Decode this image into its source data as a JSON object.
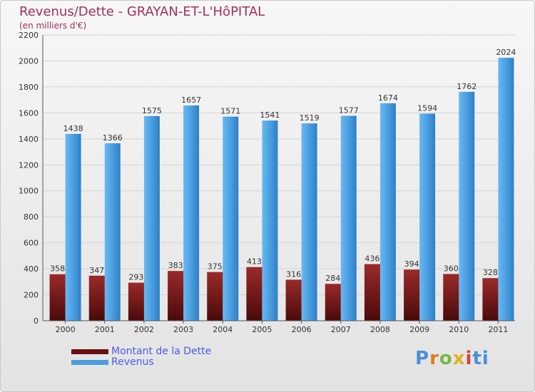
{
  "header": {
    "title": "Revenus/Dette - GRAYAN-ET-L'HôPITAL",
    "subtitle": "(en milliers d'€)"
  },
  "logo": {
    "text": "Proxiti",
    "letters": [
      "P",
      "r",
      "o",
      "x",
      "i",
      "ti"
    ]
  },
  "chart_data": {
    "type": "bar",
    "categories": [
      "2000",
      "2001",
      "2002",
      "2003",
      "2004",
      "2005",
      "2006",
      "2007",
      "2008",
      "2009",
      "2010",
      "2011"
    ],
    "series": [
      {
        "name": "Montant de la Dette",
        "color": "#7a1a1a",
        "values": [
          358,
          347,
          293,
          383,
          375,
          413,
          316,
          284,
          436,
          394,
          360,
          328
        ]
      },
      {
        "name": "Revenus",
        "color": "#4a9ee0",
        "values": [
          1438,
          1366,
          1575,
          1657,
          1571,
          1541,
          1519,
          1577,
          1674,
          1594,
          1762,
          2024
        ]
      }
    ],
    "ylim": [
      0,
      2200
    ],
    "yticks": [
      "0",
      "200",
      "400",
      "600",
      "800",
      "1000",
      "1200",
      "1400",
      "1600",
      "1800",
      "2000",
      "2200"
    ],
    "grid": true,
    "legend": "bottom-left"
  }
}
